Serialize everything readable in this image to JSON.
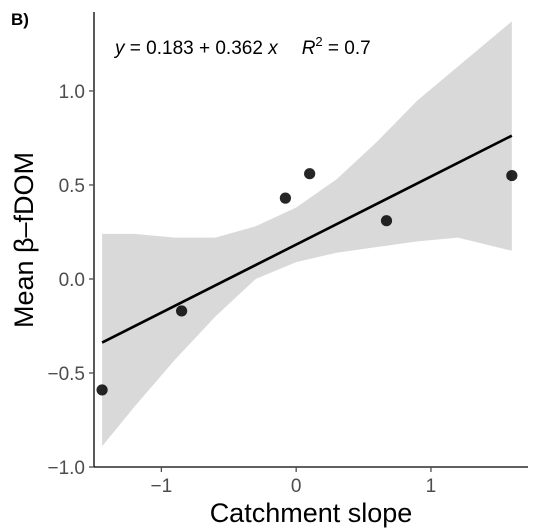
{
  "chart_data": {
    "type": "scatter",
    "panel_label": "B)",
    "xlabel": "Catchment slope",
    "ylabel": "Mean β–fDOM",
    "xlim": [
      -1.5,
      1.72
    ],
    "ylim": [
      -1.0,
      1.42
    ],
    "x_ticks": [
      -1,
      0,
      1
    ],
    "x_tick_labels": [
      "−1",
      "0",
      "1"
    ],
    "y_ticks": [
      -1.0,
      -0.5,
      0.0,
      0.5,
      1.0
    ],
    "y_tick_labels": [
      "−1.0",
      "−0.5",
      "0.0",
      "0.5",
      "1.0"
    ],
    "points": [
      {
        "x": -1.44,
        "y": -0.59
      },
      {
        "x": -0.85,
        "y": -0.17
      },
      {
        "x": -0.08,
        "y": 0.43
      },
      {
        "x": 0.1,
        "y": 0.56
      },
      {
        "x": 0.67,
        "y": 0.31
      },
      {
        "x": 1.6,
        "y": 0.55
      }
    ],
    "fit": {
      "intercept": 0.183,
      "slope": 0.362,
      "x_range": [
        -1.44,
        1.6
      ],
      "confidence_band": {
        "x": [
          -1.44,
          -1.2,
          -0.9,
          -0.6,
          -0.3,
          0.0,
          0.3,
          0.6,
          0.9,
          1.2,
          1.6
        ],
        "lower": [
          -0.89,
          -0.68,
          -0.43,
          -0.2,
          0.0,
          0.09,
          0.14,
          0.17,
          0.2,
          0.22,
          0.15
        ],
        "upper": [
          0.24,
          0.24,
          0.22,
          0.22,
          0.28,
          0.38,
          0.53,
          0.73,
          0.95,
          1.13,
          1.37
        ]
      }
    },
    "equation": {
      "y": "y",
      "equals": " = 0.183 + 0.362 ",
      "x": "x",
      "r_label": "R",
      "r_sup": "2",
      "r_value": " = 0.7"
    },
    "grid": false,
    "legend": "none",
    "colors": {
      "points": "#000000",
      "line": "#000000",
      "band": "#d9d9d9",
      "axis": "#000000",
      "ticks": "#4d4d4d"
    }
  }
}
